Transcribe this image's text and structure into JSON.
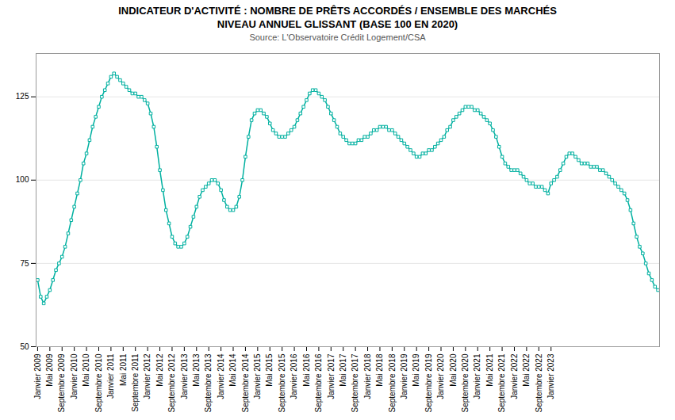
{
  "chart_data": {
    "type": "line",
    "title": "INDICATEUR D'ACTIVITÉ : NOMBRE DE PRÊTS ACCORDÉS / ENSEMBLE DES MARCHÉS",
    "subtitle": "NIVEAU ANNUEL GLISSANT (BASE 100 EN 2020)",
    "source": "Source: L'Observatoire Crédit Logement/CSA",
    "color": "#00b0a0",
    "marker": "square",
    "grid": true,
    "ylim": [
      50,
      138
    ],
    "yticks": [
      50,
      75,
      100,
      125
    ],
    "categories": [
      "Janvier 2009",
      null,
      null,
      null,
      "Mai 2009",
      null,
      null,
      null,
      "Septembre 2009",
      null,
      null,
      null,
      "Janvier 2010",
      null,
      null,
      null,
      "Mai 2010",
      null,
      null,
      null,
      "Septembre 2010",
      null,
      null,
      null,
      "Janvier 2011",
      null,
      null,
      null,
      "Mai 2011",
      null,
      null,
      null,
      "Septembre 2011",
      null,
      null,
      null,
      "Janvier 2012",
      null,
      null,
      null,
      "Mai 2012",
      null,
      null,
      null,
      "Septembre 2012",
      null,
      null,
      null,
      "Janvier 2013",
      null,
      null,
      null,
      "Mai 2013",
      null,
      null,
      null,
      "Septembre 2013",
      null,
      null,
      null,
      "Janvier 2014",
      null,
      null,
      null,
      "Mai 2014",
      null,
      null,
      null,
      "Septembre 2014",
      null,
      null,
      null,
      "Janvier 2015",
      null,
      null,
      null,
      "Mai 2015",
      null,
      null,
      null,
      "Septembre 2015",
      null,
      null,
      null,
      "Janvier 2016",
      null,
      null,
      null,
      "Mai 2016",
      null,
      null,
      null,
      "Septembre 2016",
      null,
      null,
      null,
      "Janvier 2017",
      null,
      null,
      null,
      "Mai 2017",
      null,
      null,
      null,
      "Septembre 2017",
      null,
      null,
      null,
      "Janvier 2018",
      null,
      null,
      null,
      "Mai 2018",
      null,
      null,
      null,
      "Septembre 2018",
      null,
      null,
      null,
      "Janvier 2019",
      null,
      null,
      null,
      "Mai 2019",
      null,
      null,
      null,
      "Septembre 2019",
      null,
      null,
      null,
      "Janvier 2020",
      null,
      null,
      null,
      "Mai 2020",
      null,
      null,
      null,
      "Septembre 2020",
      null,
      null,
      null,
      "Janvier 2021",
      null,
      null,
      null,
      "Mai 2021",
      null,
      null,
      null,
      "Septembre 2021",
      null,
      null,
      null,
      "Janvier 2022",
      null,
      null,
      null,
      "Mai 2022",
      null,
      null,
      null,
      "Septembre 2022",
      null,
      null,
      null,
      "Janvier 2023",
      null,
      null,
      null,
      null,
      null,
      null,
      null,
      null,
      null,
      null,
      null,
      null,
      null,
      null,
      null,
      null,
      null,
      null,
      null,
      null,
      null,
      null,
      null,
      null,
      null,
      null,
      null,
      null,
      null,
      null,
      null,
      null,
      null,
      null,
      null
    ],
    "values": [
      70,
      65,
      63,
      65,
      67,
      70,
      73,
      75,
      77,
      80,
      84,
      88,
      92,
      96,
      100,
      105,
      108,
      112,
      116,
      119,
      122,
      125,
      127,
      129,
      131,
      132,
      131,
      130,
      129,
      128,
      127,
      126,
      126,
      125,
      125,
      124,
      123,
      120,
      116,
      110,
      103,
      97,
      91,
      87,
      83,
      81,
      80,
      80,
      81,
      83,
      86,
      89,
      92,
      95,
      97,
      98,
      99,
      100,
      100,
      99,
      97,
      94,
      92,
      91,
      91,
      92,
      95,
      100,
      107,
      113,
      118,
      120,
      121,
      121,
      120,
      119,
      117,
      115,
      114,
      113,
      113,
      113,
      114,
      115,
      116,
      118,
      120,
      122,
      124,
      126,
      127,
      127,
      126,
      125,
      124,
      122,
      120,
      118,
      116,
      114,
      113,
      112,
      111,
      111,
      111,
      112,
      112,
      113,
      113,
      114,
      115,
      115,
      116,
      116,
      116,
      115,
      115,
      114,
      113,
      112,
      111,
      110,
      109,
      108,
      107,
      107,
      108,
      108,
      109,
      109,
      110,
      111,
      112,
      113,
      115,
      116,
      118,
      119,
      120,
      121,
      122,
      122,
      122,
      121,
      121,
      120,
      119,
      118,
      117,
      115,
      113,
      110,
      107,
      105,
      104,
      103,
      103,
      103,
      102,
      101,
      100,
      99,
      99,
      98,
      98,
      98,
      97,
      96,
      99,
      100,
      101,
      103,
      105,
      107,
      108,
      108,
      107,
      106,
      105,
      105,
      105,
      104,
      104,
      104,
      103,
      103,
      102,
      101,
      100,
      99,
      98,
      97,
      96,
      94,
      91,
      87,
      83,
      80,
      78,
      75,
      72,
      70,
      68,
      67
    ]
  }
}
